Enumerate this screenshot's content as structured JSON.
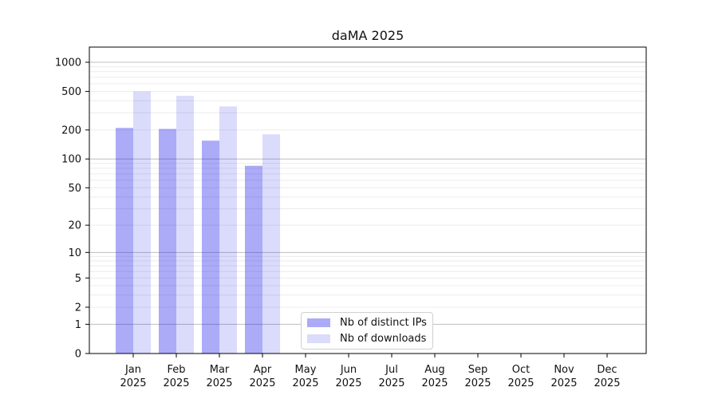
{
  "title": "daMA 2025",
  "chart_data": {
    "type": "bar",
    "title": "daMA 2025",
    "categories": [
      "Jan",
      "Feb",
      "Mar",
      "Apr",
      "May",
      "Jun",
      "Jul",
      "Aug",
      "Sep",
      "Oct",
      "Nov",
      "Dec"
    ],
    "year_label": "2025",
    "series": [
      {
        "name": "Nb of distinct IPs",
        "color": "rgba(0,0,230,0.33)",
        "values": [
          210,
          205,
          155,
          85,
          0,
          0,
          0,
          0,
          0,
          0,
          0,
          0
        ]
      },
      {
        "name": "Nb of downloads",
        "color": "rgba(0,0,230,0.14)",
        "values": [
          500,
          450,
          350,
          180,
          0,
          0,
          0,
          0,
          0,
          0,
          0,
          0
        ]
      }
    ],
    "xlabel": "",
    "ylabel": "",
    "yscale": "log1p",
    "ylim": [
      0,
      1434
    ],
    "yticks": [
      0,
      1,
      2,
      5,
      10,
      20,
      50,
      100,
      200,
      500,
      1000
    ],
    "ytick_labels": [
      "0",
      "1",
      "2",
      "5",
      "10",
      "20",
      "50",
      "100",
      "200",
      "500",
      "1000"
    ],
    "grid": "horizontal major+minor",
    "legend_position": "lower-center",
    "colors": {
      "major_grid": "#bfbfbf",
      "minor_grid": "#ececec",
      "spine": "#000000",
      "text": "#111111"
    }
  }
}
